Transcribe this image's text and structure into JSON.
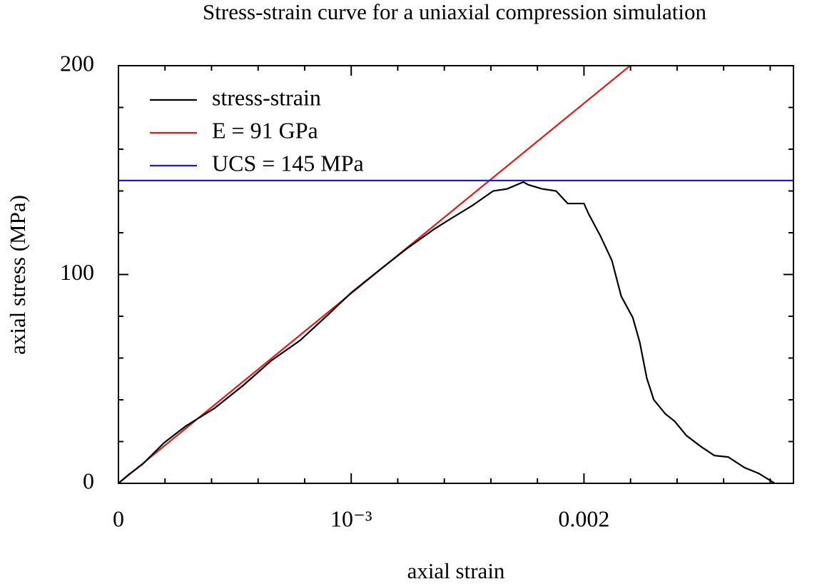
{
  "chart_data": {
    "type": "line",
    "title": "Stress-strain curve for a uniaxial compression simulation",
    "xlabel": "axial strain",
    "ylabel": "axial stress (MPa)",
    "xlim": [
      0,
      0.0029
    ],
    "ylim": [
      0,
      200
    ],
    "xticks": [
      0,
      {
        "value": 0.001,
        "label": "10⁻³"
      },
      0.002
    ],
    "yticks": [
      0,
      100,
      200
    ],
    "xminor_ticks": [
      0.0002,
      0.0004,
      0.0006,
      0.0008,
      0.0012,
      0.0014,
      0.0016,
      0.0018,
      0.0022,
      0.0024,
      0.0026,
      0.0028
    ],
    "yminor_ticks": [
      20,
      40,
      60,
      80,
      120,
      140,
      160,
      180
    ],
    "legend": "upper left",
    "series": [
      {
        "name": "stress-strain",
        "color": "#000000",
        "x": [
          0,
          4.3e-05,
          0.000104,
          0.000197,
          0.000289,
          0.000412,
          0.000535,
          0.000657,
          0.00078,
          0.000903,
          0.001,
          0.00112,
          0.00124,
          0.00136,
          0.00141,
          0.00152,
          0.00161,
          0.00167,
          0.00174,
          0.00176,
          0.00182,
          0.00188,
          0.00193,
          0.002,
          0.00202,
          0.00207,
          0.00212,
          0.00216,
          0.00221,
          0.00224,
          0.00227,
          0.0023,
          0.00235,
          0.00239,
          0.00244,
          0.0025,
          0.00256,
          0.00262,
          0.00269,
          0.00275,
          0.00282
        ],
        "values": [
          0,
          4.1,
          9.2,
          19.5,
          27.4,
          35.9,
          46.8,
          58.8,
          68.4,
          81,
          91.3,
          102,
          112.5,
          122,
          125.5,
          133,
          140,
          141,
          144.3,
          143,
          141,
          140,
          134,
          134,
          129,
          118.6,
          106.7,
          89.6,
          79.3,
          67.4,
          50.3,
          40,
          33.2,
          29.7,
          22.9,
          17.8,
          13.3,
          12.6,
          7.5,
          4.8,
          0
        ]
      },
      {
        "name": "E = 91 GPa",
        "color": "#e31a1c",
        "x": [
          0,
          0.002198
        ],
        "values": [
          0,
          200
        ]
      },
      {
        "name": "UCS = 145 MPa",
        "color": "#1f1fbf",
        "x": [
          0,
          0.0029
        ],
        "values": [
          145,
          145
        ]
      }
    ]
  }
}
